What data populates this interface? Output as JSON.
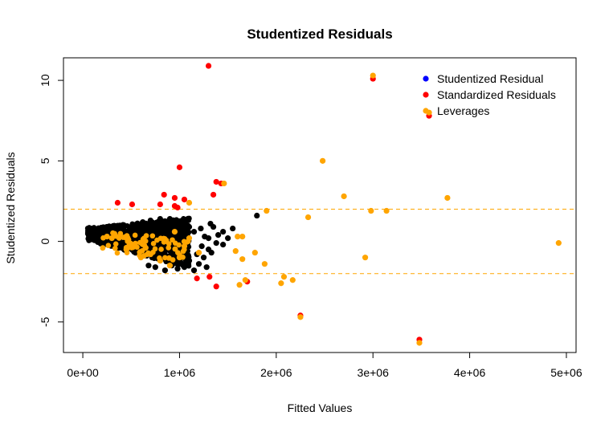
{
  "chart_data": {
    "type": "scatter",
    "title": "Studentized Residuals",
    "xlabel": "Fitted Values",
    "ylabel": "Studentized Residuals",
    "xlim": [
      -200000,
      5100000
    ],
    "ylim": [
      -6.9,
      11.4
    ],
    "x_ticks": [
      0,
      1000000,
      2000000,
      3000000,
      4000000,
      5000000
    ],
    "x_tick_labels": [
      "0e+00",
      "1e+06",
      "2e+06",
      "3e+06",
      "4e+06",
      "5e+06"
    ],
    "y_ticks": [
      -5,
      0,
      5,
      10
    ],
    "y_tick_labels": [
      "-5",
      "0",
      "5",
      "10"
    ],
    "reference_lines": {
      "values": [
        2,
        -2
      ],
      "color": "#FFA500",
      "style": "dashed"
    },
    "legend": {
      "position": "top-right",
      "entries": [
        {
          "label": "Studentized Residual",
          "color": "#0000FF"
        },
        {
          "label": "Standardized Residuals",
          "color": "#FF0000"
        },
        {
          "label": "Leverages",
          "color": "#FFA500"
        }
      ]
    },
    "series": [
      {
        "color": "#000000",
        "points": [
          [
            1800000,
            1.6
          ],
          [
            1450000,
            0.6
          ],
          [
            1500000,
            0.2
          ],
          [
            1350000,
            0.9
          ],
          [
            1400000,
            0.4
          ],
          [
            1450000,
            -0.2
          ],
          [
            1550000,
            0.8
          ],
          [
            1380000,
            -0.1
          ],
          [
            1300000,
            -0.5
          ],
          [
            1250000,
            -1.0
          ],
          [
            1200000,
            -1.4
          ],
          [
            1280000,
            -1.6
          ],
          [
            1150000,
            -1.8
          ],
          [
            1100000,
            -1.2
          ],
          [
            1050000,
            -1.6
          ],
          [
            980000,
            -1.7
          ],
          [
            920000,
            -1.5
          ],
          [
            850000,
            -1.8
          ],
          [
            1180000,
            -0.8
          ],
          [
            1220000,
            0.8
          ],
          [
            1150000,
            0.6
          ],
          [
            1100000,
            0.9
          ],
          [
            1000000,
            1.2
          ],
          [
            950000,
            1.0
          ],
          [
            900000,
            1.4
          ],
          [
            800000,
            1.4
          ],
          [
            700000,
            1.3
          ],
          [
            620000,
            1.2
          ],
          [
            750000,
            -1.6
          ],
          [
            680000,
            -1.5
          ],
          [
            1300000,
            0.2
          ],
          [
            1330000,
            -0.7
          ],
          [
            1260000,
            0.3
          ],
          [
            1320000,
            1.1
          ],
          [
            1230000,
            -0.3
          ]
        ]
      },
      {
        "color": "#FF0000",
        "points": [
          [
            1300000,
            10.9
          ],
          [
            3000000,
            10.1
          ],
          [
            3580000,
            7.8
          ],
          [
            1000000,
            4.6
          ],
          [
            1380000,
            3.7
          ],
          [
            1430000,
            3.6
          ],
          [
            1350000,
            2.9
          ],
          [
            840000,
            2.9
          ],
          [
            950000,
            2.7
          ],
          [
            1050000,
            2.6
          ],
          [
            360000,
            2.4
          ],
          [
            510000,
            2.3
          ],
          [
            950000,
            2.2
          ],
          [
            980000,
            2.1
          ],
          [
            2250000,
            -4.6
          ],
          [
            3480000,
            -6.1
          ],
          [
            1180000,
            -2.3
          ],
          [
            1310000,
            -2.2
          ],
          [
            1380000,
            -2.8
          ],
          [
            1700000,
            -2.5
          ],
          [
            800000,
            2.3
          ]
        ]
      },
      {
        "color": "#FFA500",
        "points": [
          [
            3000000,
            10.3
          ],
          [
            3580000,
            8.0
          ],
          [
            2480000,
            5.0
          ],
          [
            2700000,
            2.8
          ],
          [
            3770000,
            2.7
          ],
          [
            1460000,
            3.6
          ],
          [
            1900000,
            1.9
          ],
          [
            2980000,
            1.9
          ],
          [
            3140000,
            1.9
          ],
          [
            2330000,
            1.5
          ],
          [
            4920000,
            -0.1
          ],
          [
            2920000,
            -1.0
          ],
          [
            1600000,
            0.3
          ],
          [
            1650000,
            0.3
          ],
          [
            1580000,
            -0.6
          ],
          [
            1650000,
            -1.1
          ],
          [
            1780000,
            -0.7
          ],
          [
            1880000,
            -1.4
          ],
          [
            2080000,
            -2.2
          ],
          [
            2050000,
            -2.6
          ],
          [
            2170000,
            -2.4
          ],
          [
            1620000,
            -2.7
          ],
          [
            1680000,
            -2.4
          ],
          [
            2250000,
            -4.7
          ],
          [
            3480000,
            -6.3
          ],
          [
            1100000,
            2.4
          ],
          [
            900000,
            -1.5
          ],
          [
            600000,
            -1.0
          ],
          [
            450000,
            -0.5
          ],
          [
            300000,
            0.2
          ],
          [
            250000,
            0.3
          ],
          [
            700000,
            -0.8
          ],
          [
            800000,
            -1.2
          ],
          [
            1000000,
            -1.0
          ],
          [
            1200000,
            -0.7
          ],
          [
            1100000,
            0.2
          ],
          [
            500000,
            -0.3
          ],
          [
            950000,
            0.6
          ],
          [
            650000,
            -0.4
          ],
          [
            1050000,
            -0.3
          ]
        ]
      }
    ]
  }
}
